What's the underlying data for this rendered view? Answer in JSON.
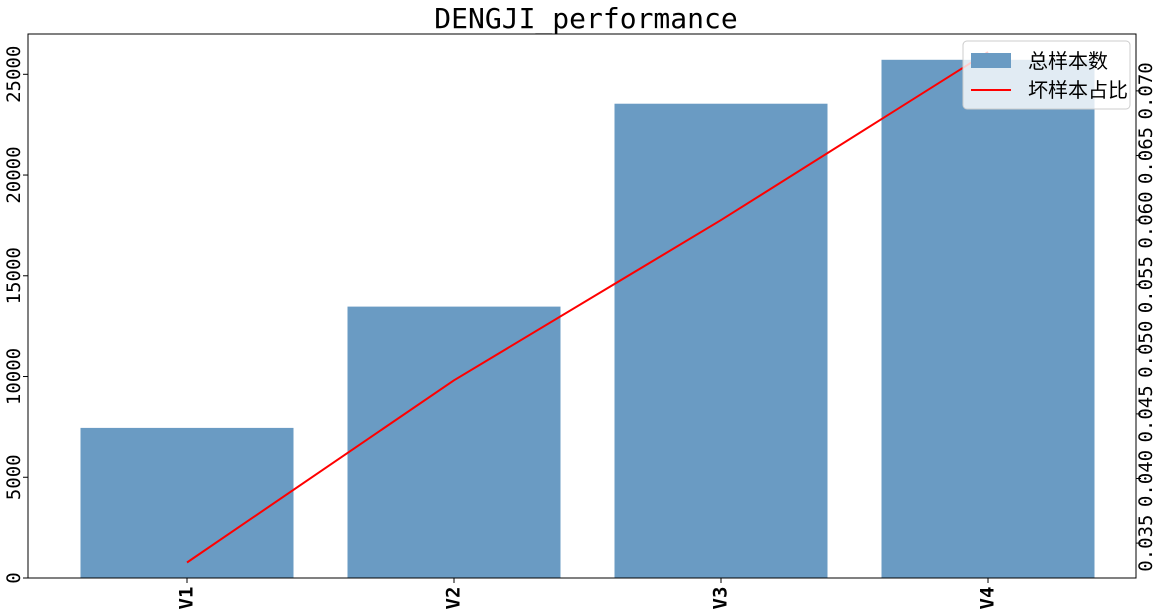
{
  "chart_data": {
    "type": "bar+line",
    "title": "DENGJI_performance",
    "categories": [
      "V1",
      "V2",
      "V3",
      "V4"
    ],
    "series": [
      {
        "name": "总样本数",
        "type": "bar",
        "axis": "left",
        "color": "#6a9bc3",
        "values": [
          7450,
          13470,
          23540,
          25720
        ]
      },
      {
        "name": "坏样本占比",
        "type": "line",
        "axis": "right",
        "color": "#ff0000",
        "values": [
          0.0335,
          0.0476,
          0.06,
          0.073
        ]
      }
    ],
    "y_left": {
      "ylim": [
        0,
        27000
      ],
      "ticks": [
        "0",
        "5000",
        "10000",
        "15000",
        "20000",
        "25000"
      ]
    },
    "y_right": {
      "ylim": [
        0.0323,
        0.0744
      ],
      "ticks": [
        "0.035",
        "0.040",
        "0.045",
        "0.050",
        "0.055",
        "0.060",
        "0.065",
        "0.070"
      ]
    },
    "legend": "top-right",
    "grid": false
  }
}
